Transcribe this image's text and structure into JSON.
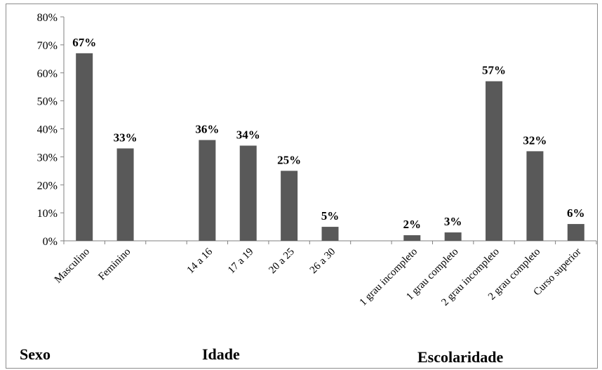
{
  "chart_data": {
    "type": "bar",
    "categories": [
      "Masculino",
      "Feminino",
      "",
      "14 a 16",
      "17 a 19",
      "20 a 25",
      "26 a 30",
      "",
      "1 grau incompleto",
      "1 grau completo",
      "2 grau incompleto",
      "2 grau completo",
      "Curso superior"
    ],
    "values": [
      67,
      33,
      null,
      36,
      34,
      25,
      5,
      null,
      2,
      3,
      57,
      32,
      6
    ],
    "data_labels": [
      "67%",
      "33%",
      "",
      "36%",
      "34%",
      "25%",
      "5%",
      "",
      "2%",
      "3%",
      "57%",
      "32%",
      "6%"
    ],
    "y_ticks": [
      "0%",
      "10%",
      "20%",
      "30%",
      "40%",
      "50%",
      "60%",
      "70%",
      "80%"
    ],
    "ylim": [
      0,
      80
    ],
    "grid": false,
    "legend": "none",
    "bar_color": "#595959",
    "groups": [
      {
        "name": "Sexo"
      },
      {
        "name": "Idade"
      },
      {
        "name": "Escolaridade"
      }
    ]
  }
}
